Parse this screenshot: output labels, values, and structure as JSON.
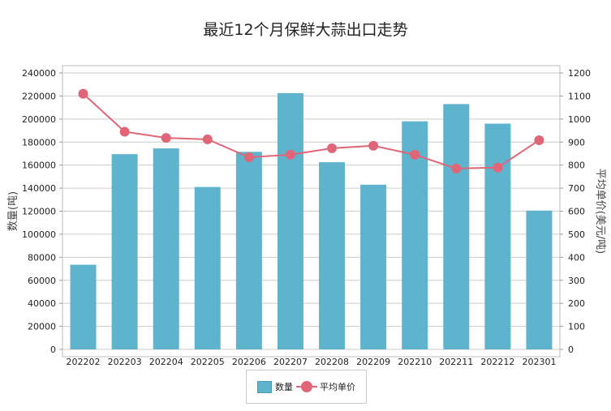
{
  "chart_data": {
    "type": "bar+line",
    "title": "最近12个月保鲜大蒜出口走势",
    "categories": [
      "202202",
      "202203",
      "202204",
      "202205",
      "202206",
      "202207",
      "202208",
      "202209",
      "202210",
      "202211",
      "202212",
      "202301"
    ],
    "series": [
      {
        "name": "数量",
        "type": "bar",
        "axis": "left",
        "color": "#5fb4cd",
        "values": [
          73500,
          169500,
          174500,
          141000,
          171500,
          222500,
          162500,
          143000,
          198000,
          213000,
          196000,
          120500
        ]
      },
      {
        "name": "平均单价",
        "type": "line",
        "axis": "right",
        "color": "#e06577",
        "values": [
          1110,
          945,
          918,
          912,
          834,
          845,
          873,
          884,
          845,
          785,
          789,
          908
        ]
      }
    ],
    "ylabel": "数量(吨)",
    "y2label": "平均单价(美元/吨)",
    "ylim": [
      0,
      240000
    ],
    "y2lim": [
      0,
      1200
    ],
    "yticks": [
      "0",
      "20000",
      "40000",
      "60000",
      "80000",
      "100000",
      "120000",
      "140000",
      "160000",
      "180000",
      "200000",
      "220000",
      "240000"
    ],
    "y2ticks": [
      "0",
      "100",
      "200",
      "300",
      "400",
      "500",
      "600",
      "700",
      "800",
      "900",
      "1000",
      "1100",
      "1200"
    ],
    "grid": true,
    "legend": "bottom"
  }
}
